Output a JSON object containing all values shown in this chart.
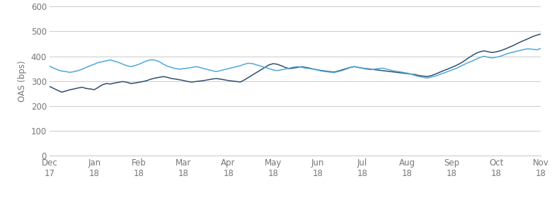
{
  "ylabel": "OAS (bps)",
  "ylim": [
    0,
    600
  ],
  "yticks": [
    0,
    100,
    200,
    300,
    400,
    500,
    600
  ],
  "x_labels_line1": [
    "Dec",
    "Jan",
    "Feb",
    "Mar",
    "Apr",
    "May",
    "Jun",
    "Jul",
    "Aug",
    "Sep",
    "Oct",
    "Nov"
  ],
  "x_labels_line2": [
    "17",
    "18",
    "18",
    "18",
    "18",
    "18",
    "18",
    "18",
    "18",
    "18",
    "18",
    "18"
  ],
  "n_months": 12,
  "eu_hy_color": "#2F4F6F",
  "us_hy_color": "#4FA8D8",
  "background_color": "#ffffff",
  "grid_color": "#cccccc",
  "eu_hy": [
    278,
    270,
    262,
    255,
    260,
    265,
    268,
    272,
    275,
    270,
    268,
    265,
    275,
    285,
    290,
    288,
    292,
    295,
    298,
    295,
    290,
    292,
    295,
    298,
    302,
    308,
    312,
    315,
    318,
    315,
    310,
    308,
    305,
    302,
    298,
    296,
    298,
    300,
    302,
    305,
    308,
    310,
    308,
    305,
    302,
    300,
    298,
    296,
    305,
    315,
    325,
    335,
    345,
    355,
    365,
    370,
    368,
    362,
    355,
    350,
    352,
    355,
    358,
    355,
    352,
    348,
    345,
    342,
    340,
    338,
    336,
    340,
    345,
    350,
    355,
    358,
    355,
    352,
    350,
    348,
    346,
    344,
    342,
    340,
    338,
    336,
    334,
    332,
    330,
    328,
    326,
    322,
    320,
    318,
    322,
    328,
    335,
    342,
    348,
    355,
    362,
    370,
    380,
    392,
    402,
    412,
    418,
    422,
    418,
    415,
    418,
    422,
    428,
    435,
    442,
    450,
    458,
    465,
    472,
    480,
    485,
    490
  ],
  "us_hy": [
    360,
    352,
    345,
    340,
    338,
    335,
    338,
    342,
    348,
    355,
    362,
    368,
    375,
    378,
    382,
    385,
    380,
    375,
    368,
    362,
    358,
    362,
    368,
    375,
    382,
    386,
    384,
    378,
    368,
    360,
    355,
    350,
    348,
    350,
    352,
    355,
    358,
    355,
    350,
    346,
    342,
    338,
    342,
    346,
    350,
    354,
    358,
    362,
    368,
    372,
    370,
    365,
    360,
    355,
    350,
    345,
    342,
    345,
    348,
    352,
    356,
    358,
    356,
    352,
    350,
    348,
    344,
    340,
    338,
    336,
    334,
    338,
    342,
    348,
    354,
    358,
    355,
    352,
    348,
    346,
    348,
    350,
    352,
    348,
    344,
    340,
    338,
    335,
    332,
    328,
    322,
    318,
    315,
    312,
    316,
    320,
    326,
    332,
    338,
    344,
    350,
    358,
    366,
    374,
    380,
    388,
    395,
    400,
    396,
    393,
    396,
    400,
    406,
    412,
    416,
    420,
    424,
    428,
    430,
    428,
    426,
    432
  ]
}
